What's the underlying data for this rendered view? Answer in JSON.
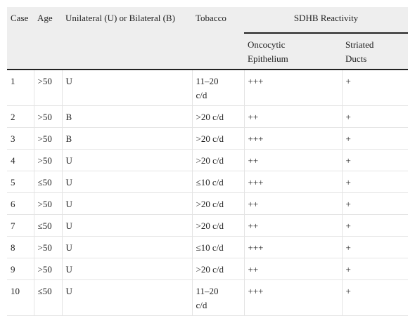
{
  "table": {
    "header": [
      "Case",
      "Age",
      "Unilateral (U) or Bilateral (B)",
      "Tobacco",
      "SDHB Reactivity"
    ],
    "subheader": [
      "Oncocytic Epithelium",
      "Striated Ducts"
    ],
    "rows": [
      [
        "1",
        ">50",
        "U",
        "11–20 c/d",
        "+++",
        "+"
      ],
      [
        "2",
        ">50",
        "B",
        ">20 c/d",
        "++",
        "+"
      ],
      [
        "3",
        ">50",
        "B",
        ">20 c/d",
        "+++",
        "+"
      ],
      [
        "4",
        ">50",
        "U",
        ">20 c/d",
        "++",
        "+"
      ],
      [
        "5",
        "≤50",
        "U",
        "≤10 c/d",
        "+++",
        "+"
      ],
      [
        "6",
        ">50",
        "U",
        ">20 c/d",
        "++",
        "+"
      ],
      [
        "7",
        "≤50",
        "U",
        ">20 c/d",
        "++",
        "+"
      ],
      [
        "8",
        ">50",
        "U",
        "≤10 c/d",
        "+++",
        "+"
      ],
      [
        "9",
        ">50",
        "U",
        ">20 c/d",
        "++",
        "+"
      ],
      [
        "10",
        "≤50",
        "U",
        "11–20 c/d",
        "+++",
        "+"
      ]
    ]
  }
}
